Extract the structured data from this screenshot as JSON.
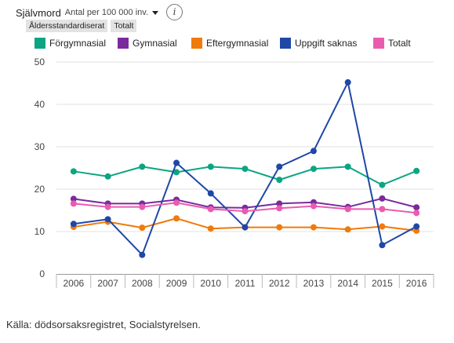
{
  "header": {
    "title": "Självmord",
    "subtitle": "Antal per 100 000 inv.",
    "info_label": "i"
  },
  "tags": [
    "Åldersstandardiserat",
    "Totalt"
  ],
  "source": "Källa: dödsorsaksregistret, Socialstyrelsen.",
  "chart_data": {
    "type": "line",
    "x": [
      2006,
      2007,
      2008,
      2009,
      2010,
      2011,
      2012,
      2013,
      2014,
      2015,
      2016
    ],
    "ylim": [
      0,
      50
    ],
    "yticks": [
      0,
      10,
      20,
      30,
      40,
      50
    ],
    "grid": true,
    "legend_position": "top",
    "series": [
      {
        "name": "Förgymnasial",
        "color": "#0ca582",
        "values": [
          24.2,
          23.0,
          25.3,
          24.0,
          25.3,
          24.8,
          22.2,
          24.8,
          25.3,
          21.0,
          24.3
        ]
      },
      {
        "name": "Gymnasial",
        "color": "#7b2a9e",
        "values": [
          17.7,
          16.6,
          16.6,
          17.5,
          15.7,
          15.6,
          16.6,
          16.9,
          15.8,
          17.8,
          15.7
        ]
      },
      {
        "name": "Eftergymnasial",
        "color": "#f07a0a",
        "values": [
          11.1,
          12.3,
          10.9,
          13.1,
          10.7,
          11.0,
          11.0,
          11.0,
          10.5,
          11.2,
          10.2
        ]
      },
      {
        "name": "Uppgift saknas",
        "color": "#1e47a7",
        "values": [
          11.8,
          12.9,
          4.5,
          26.2,
          19.0,
          11.0,
          25.3,
          29.0,
          45.2,
          6.8,
          11.2
        ]
      },
      {
        "name": "Totalt",
        "color": "#ea5bb0",
        "values": [
          16.6,
          15.8,
          15.8,
          16.8,
          15.3,
          14.8,
          15.5,
          16.0,
          15.3,
          15.3,
          14.4
        ]
      }
    ]
  }
}
